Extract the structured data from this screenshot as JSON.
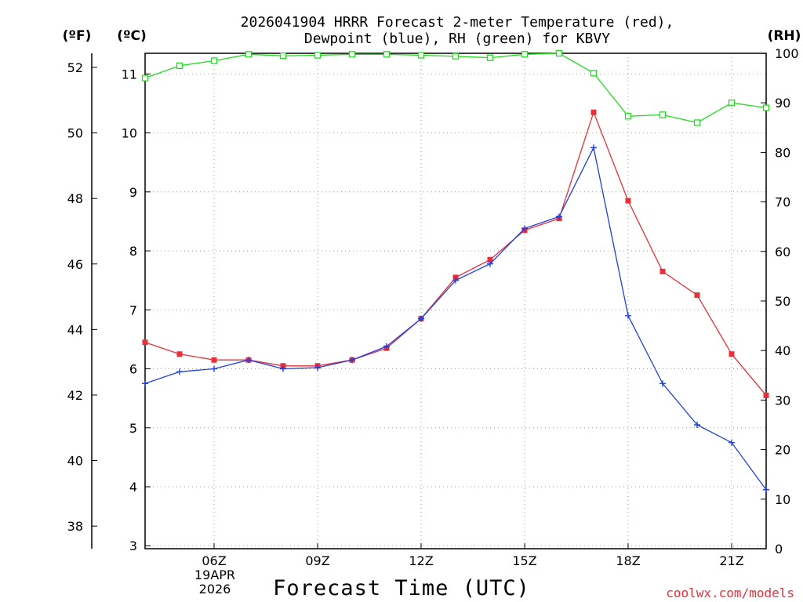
{
  "chart_data": {
    "type": "line",
    "title_line1": "2026041904 HRRR Forecast 2-meter Temperature (red),",
    "title_line2": "Dewpoint (blue), RH (green) for KBVY",
    "xlabel": "Forecast Time (UTC)",
    "date_label_line1": "19APR",
    "date_label_line2": "2026",
    "credit": "coolwx.com/models",
    "units": {
      "fahrenheit": "(ºF)",
      "celsius": "(ºC)",
      "rh": "(RH)"
    },
    "x": [
      4,
      5,
      6,
      7,
      8,
      9,
      10,
      11,
      12,
      13,
      14,
      15,
      16,
      17,
      18,
      19,
      20,
      21,
      22
    ],
    "xlim": [
      4,
      22
    ],
    "x_ticks": [
      {
        "value": 6,
        "label": "06Z"
      },
      {
        "value": 9,
        "label": "09Z"
      },
      {
        "value": 12,
        "label": "12Z"
      },
      {
        "value": 15,
        "label": "15Z"
      },
      {
        "value": 18,
        "label": "18Z"
      },
      {
        "value": 21,
        "label": "21Z"
      }
    ],
    "celsius_axis": {
      "lim": [
        2.95,
        11.35
      ],
      "ticks": [
        "3",
        "4",
        "5",
        "6",
        "7",
        "8",
        "9",
        "10",
        "11"
      ]
    },
    "fahrenheit_axis": {
      "ticks": [
        "38",
        "40",
        "42",
        "44",
        "46",
        "48",
        "50",
        "52"
      ]
    },
    "rh_axis": {
      "lim": [
        0,
        100
      ],
      "ticks": [
        "0",
        "10",
        "20",
        "30",
        "40",
        "50",
        "60",
        "70",
        "80",
        "90",
        "100"
      ]
    },
    "series": [
      {
        "name": "Temperature",
        "axis": "C",
        "color": "#e8303a",
        "marker": "square-filled",
        "values": [
          6.45,
          6.25,
          6.15,
          6.15,
          6.05,
          6.05,
          6.15,
          6.35,
          6.85,
          7.55,
          7.85,
          8.35,
          8.55,
          10.35,
          8.85,
          7.65,
          7.25,
          6.25,
          5.55
        ]
      },
      {
        "name": "Dewpoint",
        "axis": "C",
        "color": "#2040e0",
        "marker": "plus",
        "values": [
          5.75,
          5.95,
          6.0,
          6.15,
          6.0,
          6.02,
          6.15,
          6.38,
          6.85,
          7.5,
          7.78,
          8.38,
          8.58,
          9.75,
          6.9,
          5.75,
          5.05,
          4.75,
          3.95
        ]
      },
      {
        "name": "RH",
        "axis": "RH",
        "color": "#22dd22",
        "marker": "square-open",
        "values": [
          95,
          97.5,
          98.5,
          99.8,
          99.5,
          99.6,
          99.8,
          99.8,
          99.6,
          99.4,
          99.1,
          99.8,
          100,
          96,
          87.3,
          87.6,
          86,
          90,
          89
        ]
      }
    ]
  }
}
